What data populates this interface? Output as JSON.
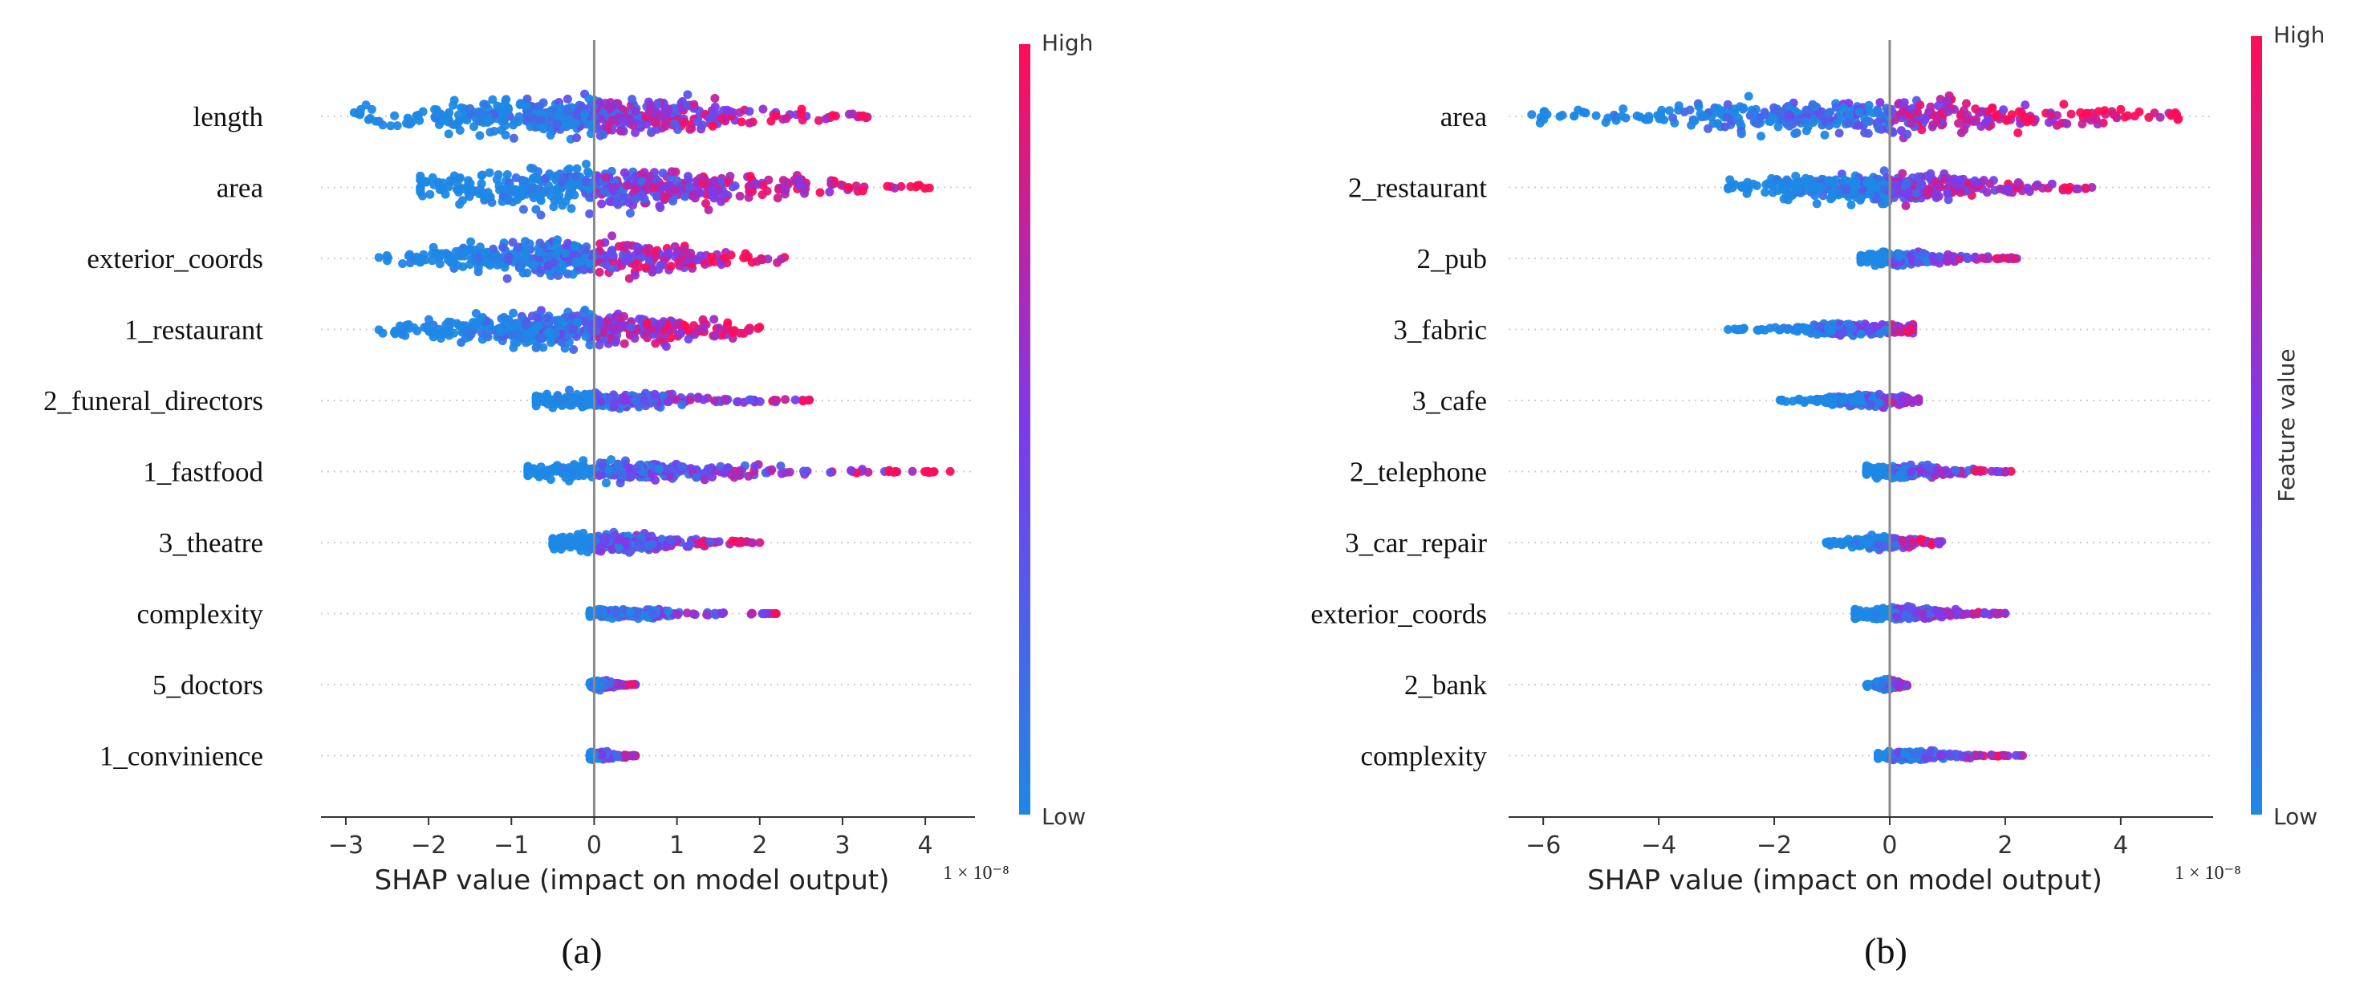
{
  "chart_data": [
    {
      "type": "scatter",
      "subtype": "shap-beeswarm",
      "panel_label": "(a)",
      "xlabel": "SHAP value (impact on model output)",
      "multiplier": "1 × 10⁻⁸",
      "xlim": [
        -3.3,
        4.6
      ],
      "xticks": [
        -3,
        -2,
        -1,
        0,
        1,
        2,
        3,
        4
      ],
      "features": [
        {
          "name": "length",
          "range": [
            -2.9,
            3.3
          ],
          "width": 26,
          "pos_weight": 0.45
        },
        {
          "name": "area",
          "range": [
            -2.1,
            4.05
          ],
          "width": 26,
          "pos_weight": 0.6
        },
        {
          "name": "exterior_coords",
          "range": [
            -2.6,
            2.3
          ],
          "width": 22,
          "pos_weight": 0.5
        },
        {
          "name": "1_restaurant",
          "range": [
            -2.6,
            2.0
          ],
          "width": 22,
          "pos_weight": 0.45
        },
        {
          "name": "2_funeral_directors",
          "range": [
            -0.7,
            2.6
          ],
          "width": 10,
          "pos_weight": 0.3
        },
        {
          "name": "1_fastfood",
          "range": [
            -0.8,
            4.3
          ],
          "width": 12,
          "pos_weight": 0.45
        },
        {
          "name": "3_theatre",
          "range": [
            -0.5,
            2.0
          ],
          "width": 12,
          "pos_weight": 0.3
        },
        {
          "name": "complexity",
          "range": [
            -0.05,
            2.2
          ],
          "width": 6,
          "pos_weight": 0.3
        },
        {
          "name": "5_doctors",
          "range": [
            -0.05,
            0.5
          ],
          "width": 5,
          "pos_weight": 0.3
        },
        {
          "name": "1_convinience",
          "range": [
            -0.05,
            0.5
          ],
          "width": 5,
          "pos_weight": 0.3
        }
      ],
      "colorbar": {
        "high": "High",
        "low": "Low",
        "title": ""
      }
    },
    {
      "type": "scatter",
      "subtype": "shap-beeswarm",
      "panel_label": "(b)",
      "xlabel": "SHAP value (impact on model output)",
      "multiplier": "1 × 10⁻⁸",
      "xlim": [
        -6.6,
        5.6
      ],
      "xticks": [
        -6,
        -4,
        -2,
        0,
        2,
        4
      ],
      "features": [
        {
          "name": "area",
          "range": [
            -6.2,
            5.0
          ],
          "width": 22,
          "pos_weight": 0.55
        },
        {
          "name": "2_restaurant",
          "range": [
            -2.8,
            3.5
          ],
          "width": 18,
          "pos_weight": 0.45
        },
        {
          "name": "2_pub",
          "range": [
            -0.5,
            2.2
          ],
          "width": 8,
          "pos_weight": 0.3
        },
        {
          "name": "3_fabric",
          "range": [
            -2.8,
            0.4
          ],
          "width": 8,
          "pos_weight": 0.3
        },
        {
          "name": "3_cafe",
          "range": [
            -1.9,
            0.5
          ],
          "width": 8,
          "pos_weight": 0.3
        },
        {
          "name": "2_telephone",
          "range": [
            -0.4,
            2.1
          ],
          "width": 8,
          "pos_weight": 0.3
        },
        {
          "name": "3_car_repair",
          "range": [
            -1.1,
            0.9
          ],
          "width": 8,
          "pos_weight": 0.3
        },
        {
          "name": "exterior_coords",
          "range": [
            -0.6,
            2.0
          ],
          "width": 8,
          "pos_weight": 0.35
        },
        {
          "name": "2_bank",
          "range": [
            -0.4,
            0.3
          ],
          "width": 6,
          "pos_weight": 0.3
        },
        {
          "name": "complexity",
          "range": [
            -0.2,
            2.3
          ],
          "width": 6,
          "pos_weight": 0.3
        }
      ],
      "colorbar": {
        "high": "High",
        "low": "Low",
        "title": "Feature value"
      }
    }
  ],
  "colors": {
    "low": "#1e88e5",
    "high": "#ff0d57",
    "mid": "#7c3aed"
  }
}
